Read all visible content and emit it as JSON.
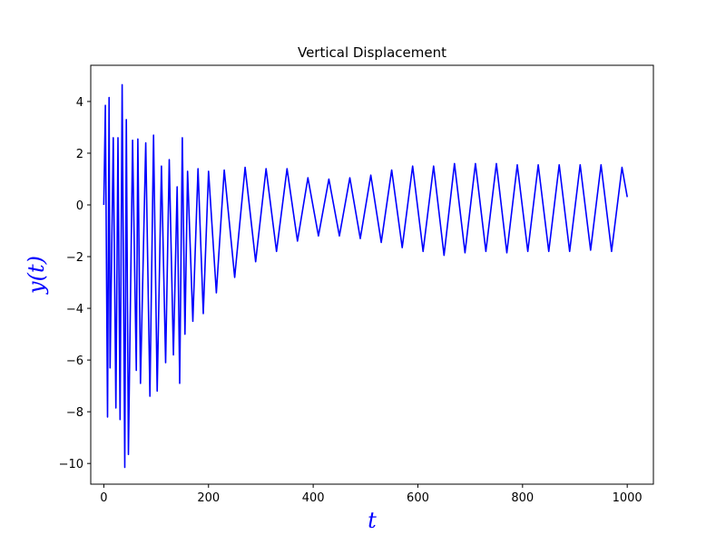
{
  "chart_data": {
    "type": "line",
    "title": "Vertical Displacement",
    "xlabel": "t",
    "ylabel": "y(t)",
    "xlim": [
      -25,
      1050
    ],
    "ylim": [
      -10.8,
      5.4
    ],
    "xticks": [
      0,
      200,
      400,
      600,
      800,
      1000
    ],
    "yticks": [
      -10,
      -8,
      -6,
      -4,
      -2,
      0,
      2,
      4
    ],
    "xtick_labels": [
      "0",
      "200",
      "400",
      "600",
      "800",
      "1000"
    ],
    "ytick_labels": [
      "−10",
      "−8",
      "−6",
      "−4",
      "−2",
      "0",
      "2",
      "4"
    ],
    "grid": false,
    "series": [
      {
        "color": "#0000ff",
        "x": [
          0,
          3,
          7,
          10,
          12,
          18,
          23,
          27,
          31,
          35,
          40,
          43,
          47,
          55,
          62,
          65,
          70,
          80,
          88,
          95,
          102,
          110,
          118,
          125,
          133,
          140,
          145,
          150,
          155,
          160,
          170,
          180,
          190,
          200,
          215,
          230,
          250,
          270,
          290,
          310,
          330,
          350,
          370,
          390,
          410,
          430,
          450,
          470,
          490,
          510,
          530,
          550,
          570,
          590,
          610,
          630,
          650,
          670,
          690,
          710,
          730,
          750,
          770,
          790,
          810,
          830,
          850,
          870,
          890,
          910,
          930,
          950,
          970,
          990,
          1000
        ],
        "y": [
          0,
          3.85,
          -8.2,
          4.15,
          -6.3,
          2.6,
          -7.85,
          2.6,
          -8.3,
          4.65,
          -10.15,
          3.3,
          -9.65,
          2.5,
          -6.4,
          2.55,
          -6.9,
          2.4,
          -7.4,
          2.7,
          -7.2,
          1.5,
          -6.1,
          1.75,
          -5.8,
          0.7,
          -6.9,
          2.6,
          -5.0,
          1.3,
          -4.5,
          1.4,
          -4.2,
          1.3,
          -3.4,
          1.35,
          -2.8,
          1.45,
          -2.2,
          1.4,
          -1.8,
          1.4,
          -1.4,
          1.05,
          -1.2,
          1.0,
          -1.2,
          1.05,
          -1.3,
          1.15,
          -1.45,
          1.35,
          -1.65,
          1.5,
          -1.8,
          1.5,
          -1.95,
          1.6,
          -1.85,
          1.6,
          -1.8,
          1.6,
          -1.85,
          1.55,
          -1.8,
          1.55,
          -1.8,
          1.55,
          -1.8,
          1.55,
          -1.75,
          1.55,
          -1.8,
          1.45,
          0.3
        ]
      }
    ]
  }
}
